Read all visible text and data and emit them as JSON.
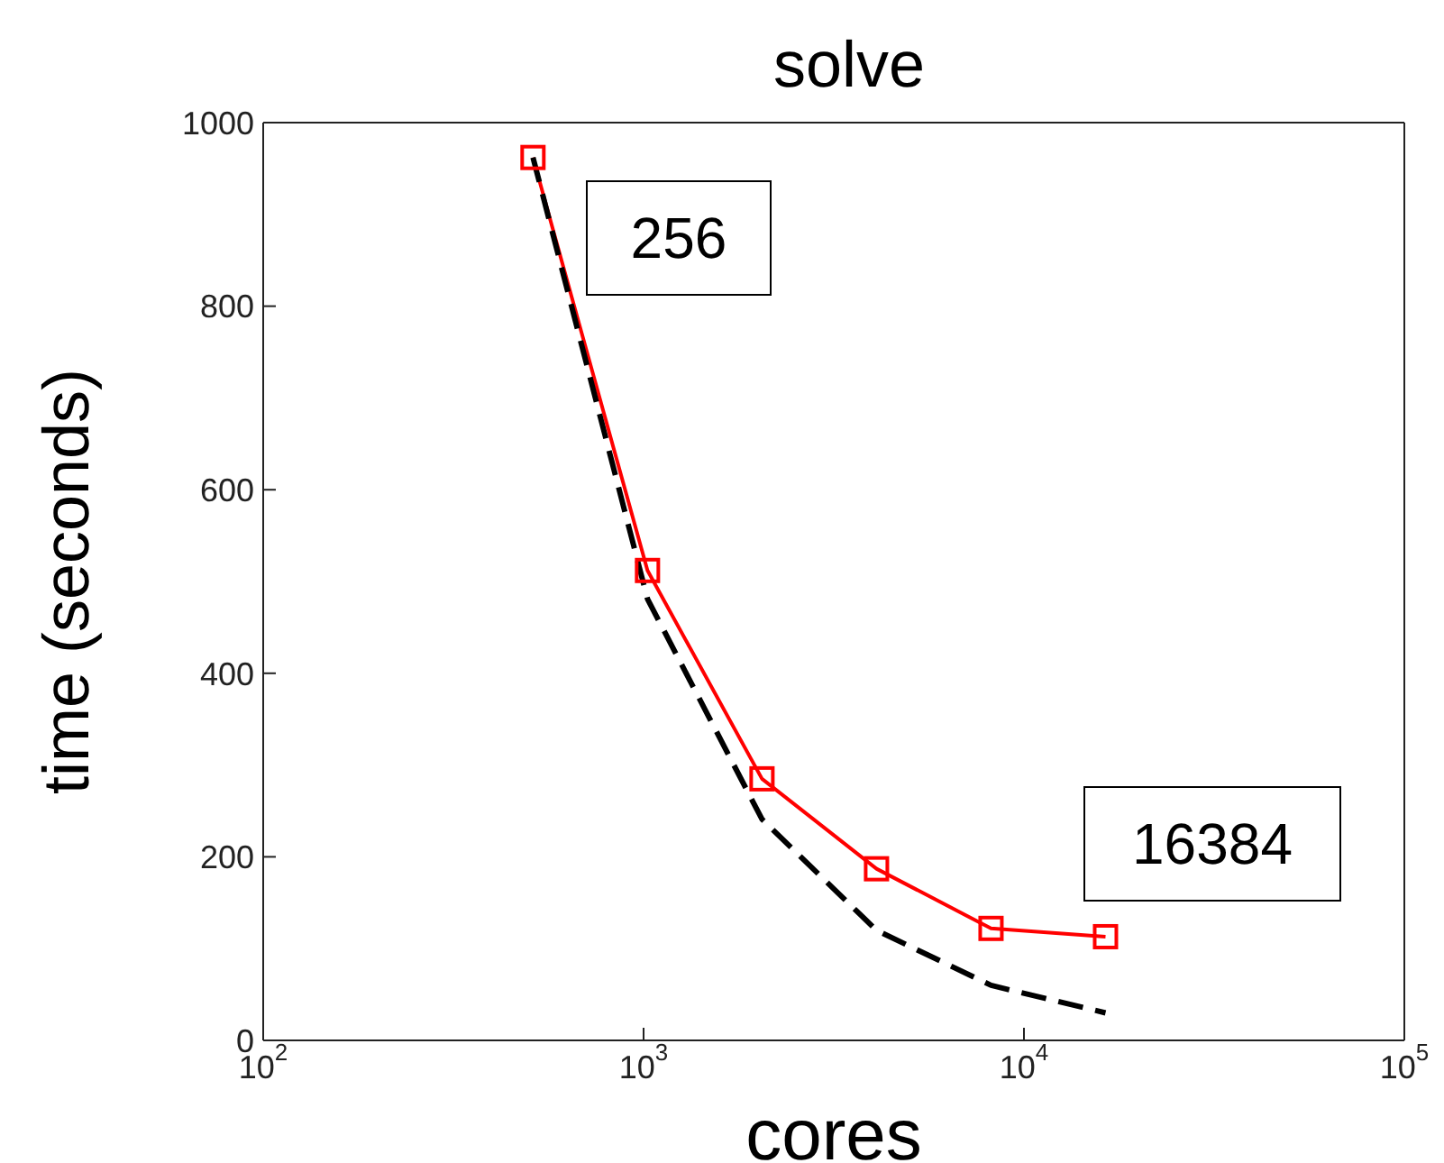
{
  "chart_data": {
    "type": "line",
    "title": "solve",
    "xlabel": "cores",
    "ylabel": "time (seconds)",
    "log": "x",
    "x": [
      512,
      1024,
      2048,
      4096,
      8192,
      16384
    ],
    "xlim": [
      100,
      100000
    ],
    "xticks": [
      {
        "value": 100,
        "label": "10$^{2}$"
      },
      {
        "value": 1000,
        "label": "10$^{3}$"
      },
      {
        "value": 10000,
        "label": "10$^{4}$"
      },
      {
        "value": 100000,
        "label": "10$^{5}$"
      }
    ],
    "ylim": [
      0,
      1000
    ],
    "yticks": [
      0,
      200,
      400,
      600,
      800,
      1000
    ],
    "annotations": [
      "256",
      "16384"
    ],
    "series": [
      {
        "color": "#ff0000",
        "values": [
          962,
          512,
          285,
          187,
          122,
          113
        ],
        "marker": "square",
        "line_style": "solid"
      },
      {
        "color": "#000000",
        "values": [
          962,
          481,
          241,
          120,
          60,
          30
        ],
        "marker": "none",
        "line_style": "dashed"
      }
    ]
  }
}
